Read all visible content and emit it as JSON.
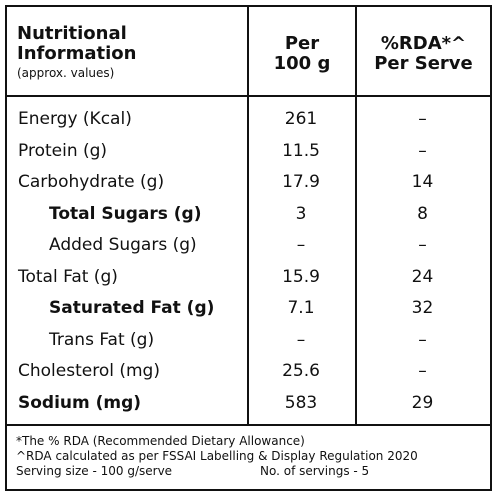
{
  "header": {
    "title_line1": "Nutritional",
    "title_line2": "Information",
    "subtitle": "(approx. values)",
    "col1_line1": "Per",
    "col1_line2": "100 g",
    "col2_line1": "%RDA*^",
    "col2_line2": "Per Serve"
  },
  "rows": [
    {
      "name": "Energy (Kcal)",
      "per100g": "261",
      "rda": "–",
      "indent": false,
      "bold": false
    },
    {
      "name": "Protein (g)",
      "per100g": "11.5",
      "rda": "–",
      "indent": false,
      "bold": false
    },
    {
      "name": "Carbohydrate (g)",
      "per100g": "17.9",
      "rda": "14",
      "indent": false,
      "bold": false
    },
    {
      "name": "Total Sugars (g)",
      "per100g": "3",
      "rda": "8",
      "indent": true,
      "bold": true
    },
    {
      "name": "Added Sugars (g)",
      "per100g": "–",
      "rda": "–",
      "indent": true,
      "bold": false
    },
    {
      "name": "Total Fat (g)",
      "per100g": "15.9",
      "rda": "24",
      "indent": false,
      "bold": false
    },
    {
      "name": "Saturated Fat (g)",
      "per100g": "7.1",
      "rda": "32",
      "indent": true,
      "bold": true
    },
    {
      "name": "Trans Fat (g)",
      "per100g": "–",
      "rda": "–",
      "indent": true,
      "bold": false
    },
    {
      "name": "Cholesterol (mg)",
      "per100g": "25.6",
      "rda": "–",
      "indent": false,
      "bold": false
    },
    {
      "name": "Sodium (mg)",
      "per100g": "583",
      "rda": "29",
      "indent": false,
      "bold": true
    }
  ],
  "footer": {
    "note1": "*The % RDA (Recommended Dietary Allowance)",
    "note2": "^RDA calculated as per FSSAI Labelling & Display Regulation 2020",
    "serving_size": "Serving size - 100 g/serve",
    "servings": "No. of servings - 5"
  }
}
